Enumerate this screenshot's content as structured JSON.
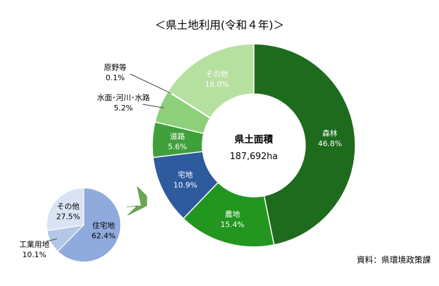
{
  "chart_data": [
    {
      "type": "pie",
      "variant": "donut",
      "title": "＜県土地利用(令和４年)＞",
      "center_label": "県土面積",
      "center_value": "187,692ha",
      "slices": [
        {
          "label": "森林",
          "value": 46.8,
          "value_text": "46.8%",
          "color": "#1e6b1e"
        },
        {
          "label": "農地",
          "value": 15.4,
          "value_text": "15.4%",
          "color": "#22961e"
        },
        {
          "label": "宅地",
          "value": 10.9,
          "value_text": "10.9%",
          "color": "#2e5a9e"
        },
        {
          "label": "道路",
          "value": 5.6,
          "value_text": "5.6%",
          "color": "#3fa03a"
        },
        {
          "label": "水面･河川･水路",
          "value": 5.2,
          "value_text": "5.2%",
          "color": "#8ed07a"
        },
        {
          "label": "原野等",
          "value": 0.1,
          "value_text": "0.1%",
          "color": "#c9e8b8"
        },
        {
          "label": "その他",
          "value": 16.0,
          "value_text": "16.0%",
          "color": "#b6e0a0"
        }
      ]
    },
    {
      "type": "pie",
      "title": "",
      "slices": [
        {
          "label": "住宅地",
          "value": 62.4,
          "value_text": "62.4%",
          "color": "#8faadc"
        },
        {
          "label": "工業用地",
          "value": 10.1,
          "value_text": "10.1%",
          "color": "#b4c7e7"
        },
        {
          "label": "その他",
          "value": 27.5,
          "value_text": "27.5%",
          "color": "#dae3f3"
        }
      ]
    }
  ],
  "source": "資料：県環境政策課",
  "arrow_color": "#6aa84f"
}
